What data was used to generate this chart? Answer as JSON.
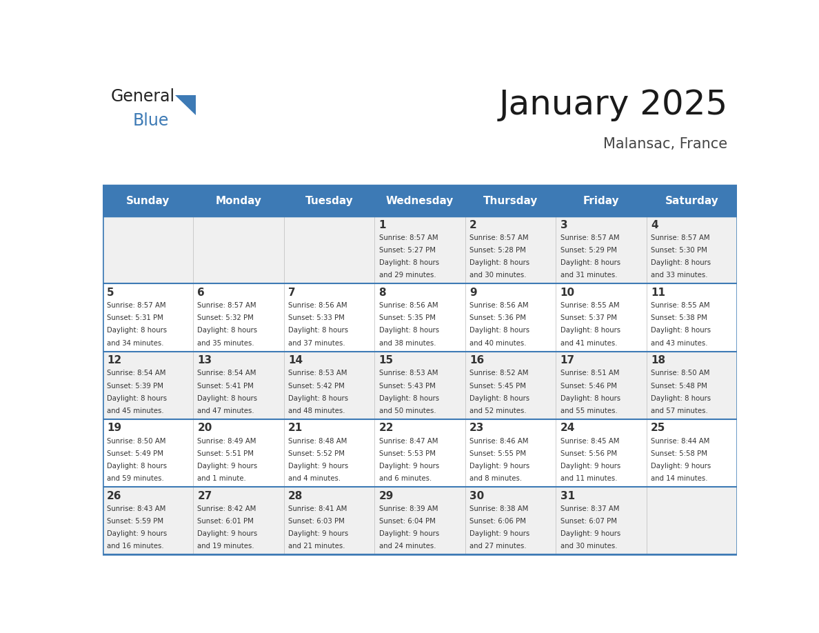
{
  "title": "January 2025",
  "subtitle": "Malansac, France",
  "header_color": "#3D7AB5",
  "header_text_color": "#FFFFFF",
  "day_names": [
    "Sunday",
    "Monday",
    "Tuesday",
    "Wednesday",
    "Thursday",
    "Friday",
    "Saturday"
  ],
  "cell_bg_color": "#F0F0F0",
  "cell_bg_alt_color": "#FFFFFF",
  "divider_color": "#3D7AB5",
  "text_color": "#333333",
  "days": [
    {
      "day": 1,
      "col": 3,
      "row": 0,
      "sunrise": "8:57 AM",
      "sunset": "5:27 PM",
      "daylight": "8 hours and 29 minutes."
    },
    {
      "day": 2,
      "col": 4,
      "row": 0,
      "sunrise": "8:57 AM",
      "sunset": "5:28 PM",
      "daylight": "8 hours and 30 minutes."
    },
    {
      "day": 3,
      "col": 5,
      "row": 0,
      "sunrise": "8:57 AM",
      "sunset": "5:29 PM",
      "daylight": "8 hours and 31 minutes."
    },
    {
      "day": 4,
      "col": 6,
      "row": 0,
      "sunrise": "8:57 AM",
      "sunset": "5:30 PM",
      "daylight": "8 hours and 33 minutes."
    },
    {
      "day": 5,
      "col": 0,
      "row": 1,
      "sunrise": "8:57 AM",
      "sunset": "5:31 PM",
      "daylight": "8 hours and 34 minutes."
    },
    {
      "day": 6,
      "col": 1,
      "row": 1,
      "sunrise": "8:57 AM",
      "sunset": "5:32 PM",
      "daylight": "8 hours and 35 minutes."
    },
    {
      "day": 7,
      "col": 2,
      "row": 1,
      "sunrise": "8:56 AM",
      "sunset": "5:33 PM",
      "daylight": "8 hours and 37 minutes."
    },
    {
      "day": 8,
      "col": 3,
      "row": 1,
      "sunrise": "8:56 AM",
      "sunset": "5:35 PM",
      "daylight": "8 hours and 38 minutes."
    },
    {
      "day": 9,
      "col": 4,
      "row": 1,
      "sunrise": "8:56 AM",
      "sunset": "5:36 PM",
      "daylight": "8 hours and 40 minutes."
    },
    {
      "day": 10,
      "col": 5,
      "row": 1,
      "sunrise": "8:55 AM",
      "sunset": "5:37 PM",
      "daylight": "8 hours and 41 minutes."
    },
    {
      "day": 11,
      "col": 6,
      "row": 1,
      "sunrise": "8:55 AM",
      "sunset": "5:38 PM",
      "daylight": "8 hours and 43 minutes."
    },
    {
      "day": 12,
      "col": 0,
      "row": 2,
      "sunrise": "8:54 AM",
      "sunset": "5:39 PM",
      "daylight": "8 hours and 45 minutes."
    },
    {
      "day": 13,
      "col": 1,
      "row": 2,
      "sunrise": "8:54 AM",
      "sunset": "5:41 PM",
      "daylight": "8 hours and 47 minutes."
    },
    {
      "day": 14,
      "col": 2,
      "row": 2,
      "sunrise": "8:53 AM",
      "sunset": "5:42 PM",
      "daylight": "8 hours and 48 minutes."
    },
    {
      "day": 15,
      "col": 3,
      "row": 2,
      "sunrise": "8:53 AM",
      "sunset": "5:43 PM",
      "daylight": "8 hours and 50 minutes."
    },
    {
      "day": 16,
      "col": 4,
      "row": 2,
      "sunrise": "8:52 AM",
      "sunset": "5:45 PM",
      "daylight": "8 hours and 52 minutes."
    },
    {
      "day": 17,
      "col": 5,
      "row": 2,
      "sunrise": "8:51 AM",
      "sunset": "5:46 PM",
      "daylight": "8 hours and 55 minutes."
    },
    {
      "day": 18,
      "col": 6,
      "row": 2,
      "sunrise": "8:50 AM",
      "sunset": "5:48 PM",
      "daylight": "8 hours and 57 minutes."
    },
    {
      "day": 19,
      "col": 0,
      "row": 3,
      "sunrise": "8:50 AM",
      "sunset": "5:49 PM",
      "daylight": "8 hours and 59 minutes."
    },
    {
      "day": 20,
      "col": 1,
      "row": 3,
      "sunrise": "8:49 AM",
      "sunset": "5:51 PM",
      "daylight": "9 hours and 1 minute."
    },
    {
      "day": 21,
      "col": 2,
      "row": 3,
      "sunrise": "8:48 AM",
      "sunset": "5:52 PM",
      "daylight": "9 hours and 4 minutes."
    },
    {
      "day": 22,
      "col": 3,
      "row": 3,
      "sunrise": "8:47 AM",
      "sunset": "5:53 PM",
      "daylight": "9 hours and 6 minutes."
    },
    {
      "day": 23,
      "col": 4,
      "row": 3,
      "sunrise": "8:46 AM",
      "sunset": "5:55 PM",
      "daylight": "9 hours and 8 minutes."
    },
    {
      "day": 24,
      "col": 5,
      "row": 3,
      "sunrise": "8:45 AM",
      "sunset": "5:56 PM",
      "daylight": "9 hours and 11 minutes."
    },
    {
      "day": 25,
      "col": 6,
      "row": 3,
      "sunrise": "8:44 AM",
      "sunset": "5:58 PM",
      "daylight": "9 hours and 14 minutes."
    },
    {
      "day": 26,
      "col": 0,
      "row": 4,
      "sunrise": "8:43 AM",
      "sunset": "5:59 PM",
      "daylight": "9 hours and 16 minutes."
    },
    {
      "day": 27,
      "col": 1,
      "row": 4,
      "sunrise": "8:42 AM",
      "sunset": "6:01 PM",
      "daylight": "9 hours and 19 minutes."
    },
    {
      "day": 28,
      "col": 2,
      "row": 4,
      "sunrise": "8:41 AM",
      "sunset": "6:03 PM",
      "daylight": "9 hours and 21 minutes."
    },
    {
      "day": 29,
      "col": 3,
      "row": 4,
      "sunrise": "8:39 AM",
      "sunset": "6:04 PM",
      "daylight": "9 hours and 24 minutes."
    },
    {
      "day": 30,
      "col": 4,
      "row": 4,
      "sunrise": "8:38 AM",
      "sunset": "6:06 PM",
      "daylight": "9 hours and 27 minutes."
    },
    {
      "day": 31,
      "col": 5,
      "row": 4,
      "sunrise": "8:37 AM",
      "sunset": "6:07 PM",
      "daylight": "9 hours and 30 minutes."
    }
  ]
}
